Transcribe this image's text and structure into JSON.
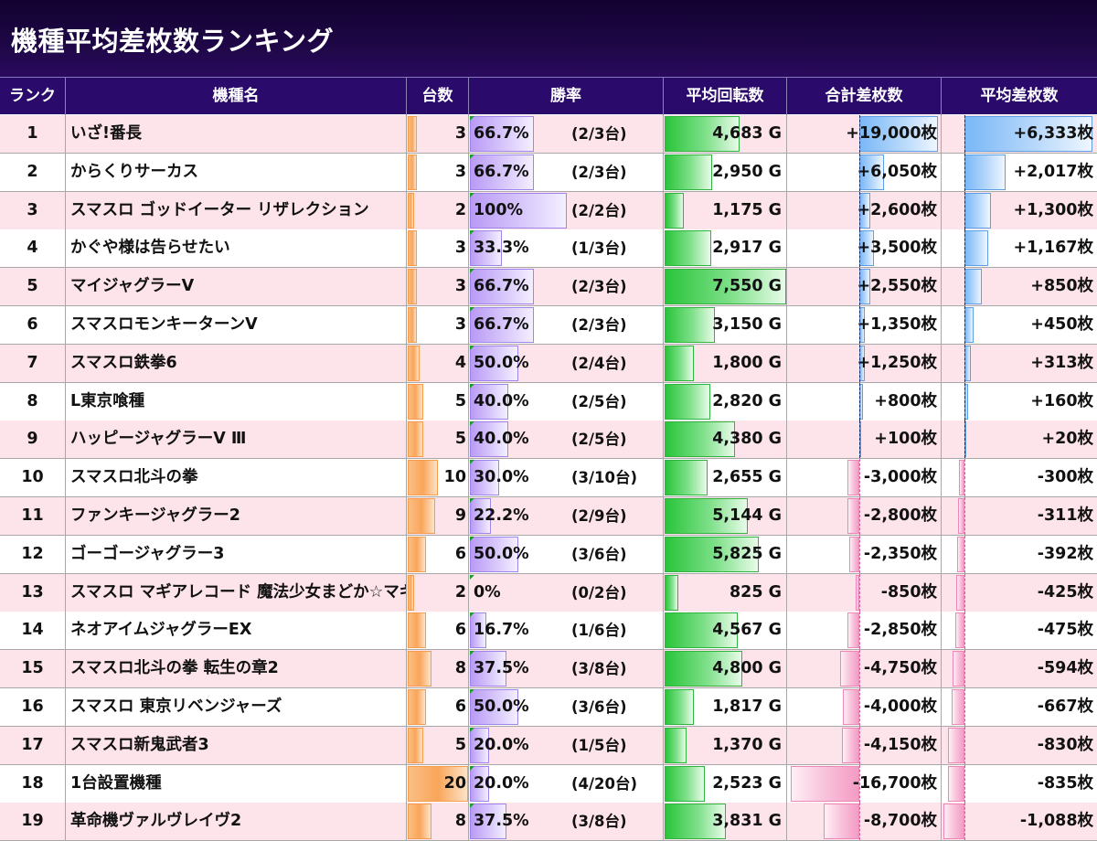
{
  "title": "機種平均差枚数ランキング",
  "headers": {
    "rank": "ランク",
    "name": "機種名",
    "units": "台数",
    "win_rate": "勝率",
    "avg_spins": "平均回転数",
    "total_diff": "合計差枚数",
    "avg_diff": "平均差枚数"
  },
  "colors": {
    "title_bg": "#1a0540",
    "header_bg": "#2a0a6b",
    "row_pink": "#fde3ea",
    "units_bar": "#f9a55a",
    "win_bar": "#b99af5",
    "spins_bar": "#29c43a",
    "positive_bar": "#7ab8f7",
    "negative_bar": "#f49bc4"
  },
  "rows": [
    {
      "rank": "1",
      "name": "いざ!番長",
      "units": "3",
      "units_value": 3,
      "win_pct": "66.7%",
      "win_value": 66.7,
      "win_frac": "(2/3台)",
      "spins": "4,683 G",
      "spins_value": 4683,
      "total": "+19,000枚",
      "total_value": 19000,
      "avg": "+6,333枚",
      "avg_value": 6333
    },
    {
      "rank": "2",
      "name": "からくりサーカス",
      "units": "3",
      "units_value": 3,
      "win_pct": "66.7%",
      "win_value": 66.7,
      "win_frac": "(2/3台)",
      "spins": "2,950 G",
      "spins_value": 2950,
      "total": "+6,050枚",
      "total_value": 6050,
      "avg": "+2,017枚",
      "avg_value": 2017
    },
    {
      "rank": "3",
      "name": "スマスロ ゴッドイーター リザレクション",
      "units": "2",
      "units_value": 2,
      "win_pct": "100%",
      "win_value": 100,
      "win_frac": "(2/2台)",
      "spins": "1,175 G",
      "spins_value": 1175,
      "total": "+2,600枚",
      "total_value": 2600,
      "avg": "+1,300枚",
      "avg_value": 1300
    },
    {
      "rank": "4",
      "name": "かぐや様は告らせたい",
      "units": "3",
      "units_value": 3,
      "win_pct": "33.3%",
      "win_value": 33.3,
      "win_frac": "(1/3台)",
      "spins": "2,917 G",
      "spins_value": 2917,
      "total": "+3,500枚",
      "total_value": 3500,
      "avg": "+1,167枚",
      "avg_value": 1167
    },
    {
      "rank": "5",
      "name": "マイジャグラーV",
      "units": "3",
      "units_value": 3,
      "win_pct": "66.7%",
      "win_value": 66.7,
      "win_frac": "(2/3台)",
      "spins": "7,550 G",
      "spins_value": 7550,
      "total": "+2,550枚",
      "total_value": 2550,
      "avg": "+850枚",
      "avg_value": 850
    },
    {
      "rank": "6",
      "name": "スマスロモンキーターンV",
      "units": "3",
      "units_value": 3,
      "win_pct": "66.7%",
      "win_value": 66.7,
      "win_frac": "(2/3台)",
      "spins": "3,150 G",
      "spins_value": 3150,
      "total": "+1,350枚",
      "total_value": 1350,
      "avg": "+450枚",
      "avg_value": 450
    },
    {
      "rank": "7",
      "name": "スマスロ鉄拳6",
      "units": "4",
      "units_value": 4,
      "win_pct": "50.0%",
      "win_value": 50,
      "win_frac": "(2/4台)",
      "spins": "1,800 G",
      "spins_value": 1800,
      "total": "+1,250枚",
      "total_value": 1250,
      "avg": "+313枚",
      "avg_value": 313
    },
    {
      "rank": "8",
      "name": "L東京喰種",
      "units": "5",
      "units_value": 5,
      "win_pct": "40.0%",
      "win_value": 40,
      "win_frac": "(2/5台)",
      "spins": "2,820 G",
      "spins_value": 2820,
      "total": "+800枚",
      "total_value": 800,
      "avg": "+160枚",
      "avg_value": 160
    },
    {
      "rank": "9",
      "name": "ハッピージャグラーV Ⅲ",
      "units": "5",
      "units_value": 5,
      "win_pct": "40.0%",
      "win_value": 40,
      "win_frac": "(2/5台)",
      "spins": "4,380 G",
      "spins_value": 4380,
      "total": "+100枚",
      "total_value": 100,
      "avg": "+20枚",
      "avg_value": 20
    },
    {
      "rank": "10",
      "name": "スマスロ北斗の拳",
      "units": "10",
      "units_value": 10,
      "win_pct": "30.0%",
      "win_value": 30,
      "win_frac": "(3/10台)",
      "spins": "2,655 G",
      "spins_value": 2655,
      "total": "-3,000枚",
      "total_value": -3000,
      "avg": "-300枚",
      "avg_value": -300
    },
    {
      "rank": "11",
      "name": "ファンキージャグラー2",
      "units": "9",
      "units_value": 9,
      "win_pct": "22.2%",
      "win_value": 22.2,
      "win_frac": "(2/9台)",
      "spins": "5,144 G",
      "spins_value": 5144,
      "total": "-2,800枚",
      "total_value": -2800,
      "avg": "-311枚",
      "avg_value": -311
    },
    {
      "rank": "12",
      "name": "ゴーゴージャグラー3",
      "units": "6",
      "units_value": 6,
      "win_pct": "50.0%",
      "win_value": 50,
      "win_frac": "(3/6台)",
      "spins": "5,825 G",
      "spins_value": 5825,
      "total": "-2,350枚",
      "total_value": -2350,
      "avg": "-392枚",
      "avg_value": -392
    },
    {
      "rank": "13",
      "name": "スマスロ マギアレコード 魔法少女まどか☆マギカ外伝",
      "units": "2",
      "units_value": 2,
      "win_pct": "0%",
      "win_value": 0,
      "win_frac": "(0/2台)",
      "spins": "825 G",
      "spins_value": 825,
      "total": "-850枚",
      "total_value": -850,
      "avg": "-425枚",
      "avg_value": -425
    },
    {
      "rank": "14",
      "name": "ネオアイムジャグラーEX",
      "units": "6",
      "units_value": 6,
      "win_pct": "16.7%",
      "win_value": 16.7,
      "win_frac": "(1/6台)",
      "spins": "4,567 G",
      "spins_value": 4567,
      "total": "-2,850枚",
      "total_value": -2850,
      "avg": "-475枚",
      "avg_value": -475
    },
    {
      "rank": "15",
      "name": "スマスロ北斗の拳 転生の章2",
      "units": "8",
      "units_value": 8,
      "win_pct": "37.5%",
      "win_value": 37.5,
      "win_frac": "(3/8台)",
      "spins": "4,800 G",
      "spins_value": 4800,
      "total": "-4,750枚",
      "total_value": -4750,
      "avg": "-594枚",
      "avg_value": -594
    },
    {
      "rank": "16",
      "name": "スマスロ 東京リベンジャーズ",
      "units": "6",
      "units_value": 6,
      "win_pct": "50.0%",
      "win_value": 50,
      "win_frac": "(3/6台)",
      "spins": "1,817 G",
      "spins_value": 1817,
      "total": "-4,000枚",
      "total_value": -4000,
      "avg": "-667枚",
      "avg_value": -667
    },
    {
      "rank": "17",
      "name": "スマスロ新鬼武者3",
      "units": "5",
      "units_value": 5,
      "win_pct": "20.0%",
      "win_value": 20,
      "win_frac": "(1/5台)",
      "spins": "1,370 G",
      "spins_value": 1370,
      "total": "-4,150枚",
      "total_value": -4150,
      "avg": "-830枚",
      "avg_value": -830
    },
    {
      "rank": "18",
      "name": "1台設置機種",
      "units": "20",
      "units_value": 20,
      "win_pct": "20.0%",
      "win_value": 20,
      "win_frac": "(4/20台)",
      "spins": "2,523 G",
      "spins_value": 2523,
      "total": "-16,700枚",
      "total_value": -16700,
      "avg": "-835枚",
      "avg_value": -835
    },
    {
      "rank": "19",
      "name": "革命機ヴァルヴレイヴ2",
      "units": "8",
      "units_value": 8,
      "win_pct": "37.5%",
      "win_value": 37.5,
      "win_frac": "(3/8台)",
      "spins": "3,831 G",
      "spins_value": 3831,
      "total": "-8,700枚",
      "total_value": -8700,
      "avg": "-1,088枚",
      "avg_value": -1088
    }
  ]
}
